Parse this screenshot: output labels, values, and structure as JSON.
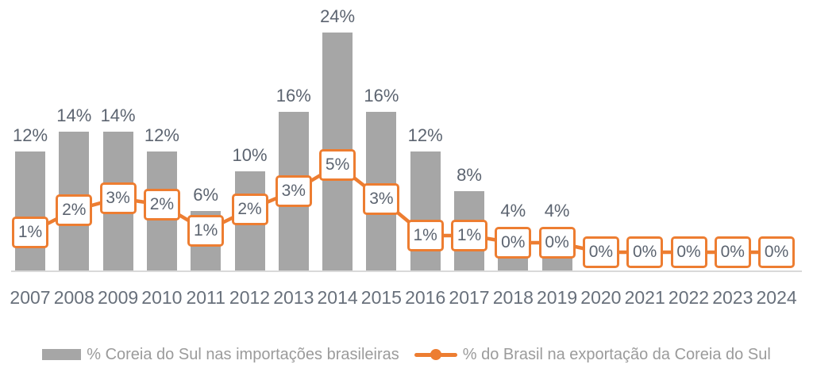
{
  "chart_data": {
    "type": "combo",
    "categories": [
      "2007",
      "2008",
      "2009",
      "2010",
      "2011",
      "2012",
      "2013",
      "2014",
      "2015",
      "2016",
      "2017",
      "2018",
      "2019",
      "2020",
      "2021",
      "2022",
      "2023",
      "2024"
    ],
    "series": [
      {
        "name": "% Coreia do Sul nas importações brasileiras",
        "type": "bar",
        "color": "#A6A6A6",
        "values": [
          12,
          14,
          14,
          12,
          6,
          10,
          16,
          24,
          16,
          12,
          8,
          4,
          4,
          null,
          null,
          null,
          null,
          null
        ],
        "labels": [
          "12%",
          "14%",
          "14%",
          "12%",
          "6%",
          "10%",
          "16%",
          "24%",
          "16%",
          "12%",
          "8%",
          "4%",
          "4%",
          "",
          "",
          "",
          "",
          ""
        ]
      },
      {
        "name": "% do Brasil na exportação da Coreia do Sul",
        "type": "line",
        "color": "#ED7D31",
        "values": [
          1,
          2,
          3,
          2,
          1,
          2,
          3,
          5,
          3,
          1,
          1,
          0,
          0,
          0,
          0,
          0,
          0,
          0
        ],
        "labels": [
          "1%",
          "2%",
          "3%",
          "2%",
          "1%",
          "2%",
          "3%",
          "5%",
          "3%",
          "1%",
          "1%",
          "0%",
          "0%",
          "0%",
          "0%",
          "0%",
          "0%",
          "0%"
        ]
      }
    ],
    "title": "",
    "xlabel": "",
    "ylabel": "",
    "bar_axis_range": [
      0,
      24
    ],
    "line_axis_range": [
      0,
      5
    ],
    "grid": false,
    "legend_position": "bottom",
    "data_label_style": "line values shown in white boxes with orange border on the line; bar values shown above bars"
  },
  "legend": {
    "bar_label": "% Coreia do Sul nas importações brasileiras",
    "line_label": "% do Brasil na exportação da Coreia do Sul"
  },
  "colors": {
    "bar": "#A6A6A6",
    "line": "#ED7D31",
    "value_text": "#5C6470",
    "axis_text": "#68707B",
    "legend_text": "#9B9B9B",
    "axis_line": "#D9D9D9",
    "background": "#FFFFFF"
  }
}
